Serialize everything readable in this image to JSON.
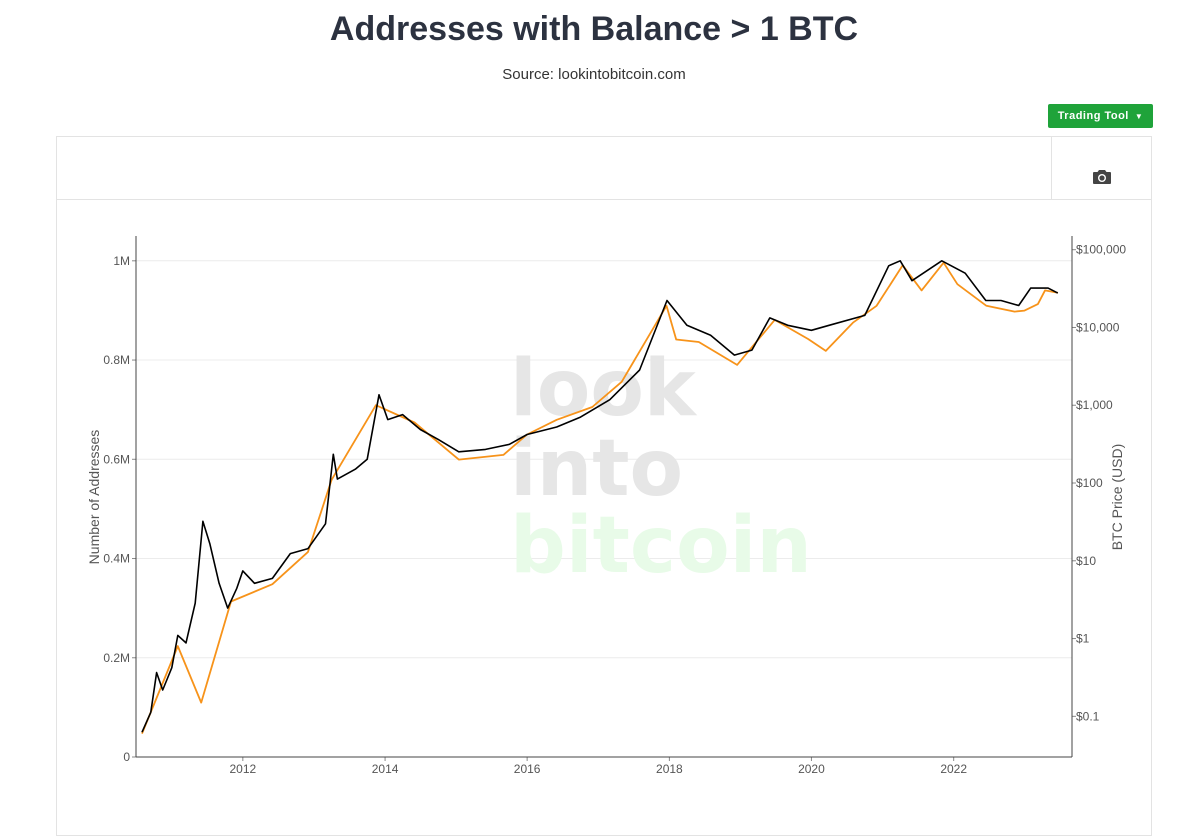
{
  "header": {
    "title": "Addresses with Balance > 1 BTC",
    "source": "Source: lookintobitcoin.com"
  },
  "toolbar": {
    "trading_tool_label": "Trading Tool",
    "camera_icon": "camera-icon"
  },
  "watermark": {
    "line1": "look",
    "line2": "into",
    "line3": "bitcoin"
  },
  "colors": {
    "addresses_line": "#000000",
    "price_line": "#f7931a",
    "trading_tool_button": "#1fa33a",
    "watermark_gray": "#e6e6e6",
    "watermark_green": "#e8fbe8"
  },
  "chart_data": {
    "type": "line",
    "title": "Addresses with Balance > 1 BTC",
    "x_ticks": [
      "2012",
      "2014",
      "2016",
      "2018",
      "2020",
      "2022"
    ],
    "y_left": {
      "label": "Number of Addresses",
      "ticks": [
        "0",
        "0.2M",
        "0.4M",
        "0.6M",
        "0.8M",
        "1M"
      ],
      "ylim": [
        0,
        1050000
      ]
    },
    "y_right": {
      "label": "BTC Price (USD)",
      "scale": "log",
      "ticks": [
        "$0.1",
        "$1",
        "$10",
        "$100",
        "$1,000",
        "$10,000",
        "$100,000"
      ],
      "ylim": [
        0.03,
        150000
      ]
    },
    "grid": true,
    "series": [
      {
        "axis": "left",
        "points": [
          [
            "2010-08-01",
            50000
          ],
          [
            "2010-09-15",
            90000
          ],
          [
            "2010-10-15",
            170000
          ],
          [
            "2010-11-15",
            135000
          ],
          [
            "2011-01-01",
            180000
          ],
          [
            "2011-02-01",
            245000
          ],
          [
            "2011-03-15",
            230000
          ],
          [
            "2011-05-01",
            310000
          ],
          [
            "2011-06-10",
            475000
          ],
          [
            "2011-07-15",
            430000
          ],
          [
            "2011-09-01",
            350000
          ],
          [
            "2011-10-15",
            300000
          ],
          [
            "2011-12-01",
            340000
          ],
          [
            "2012-01-01",
            375000
          ],
          [
            "2012-03-01",
            350000
          ],
          [
            "2012-06-01",
            360000
          ],
          [
            "2012-09-01",
            410000
          ],
          [
            "2012-12-01",
            420000
          ],
          [
            "2013-03-01",
            470000
          ],
          [
            "2013-04-10",
            610000
          ],
          [
            "2013-05-01",
            560000
          ],
          [
            "2013-08-01",
            580000
          ],
          [
            "2013-10-01",
            600000
          ],
          [
            "2013-12-01",
            730000
          ],
          [
            "2014-01-15",
            680000
          ],
          [
            "2014-04-01",
            690000
          ],
          [
            "2014-07-01",
            660000
          ],
          [
            "2014-10-01",
            640000
          ],
          [
            "2015-01-15",
            615000
          ],
          [
            "2015-06-01",
            620000
          ],
          [
            "2015-10-01",
            630000
          ],
          [
            "2016-01-01",
            650000
          ],
          [
            "2016-06-01",
            665000
          ],
          [
            "2016-10-01",
            685000
          ],
          [
            "2017-03-01",
            720000
          ],
          [
            "2017-08-01",
            780000
          ],
          [
            "2017-12-20",
            920000
          ],
          [
            "2018-04-01",
            870000
          ],
          [
            "2018-08-01",
            850000
          ],
          [
            "2018-12-01",
            810000
          ],
          [
            "2019-03-01",
            820000
          ],
          [
            "2019-06-01",
            885000
          ],
          [
            "2019-09-01",
            870000
          ],
          [
            "2020-01-01",
            860000
          ],
          [
            "2020-04-01",
            870000
          ],
          [
            "2020-10-01",
            890000
          ],
          [
            "2021-02-01",
            990000
          ],
          [
            "2021-04-01",
            1000000
          ],
          [
            "2021-06-01",
            960000
          ],
          [
            "2021-11-01",
            1000000
          ],
          [
            "2022-03-01",
            975000
          ],
          [
            "2022-06-15",
            920000
          ],
          [
            "2022-09-01",
            920000
          ],
          [
            "2022-12-01",
            910000
          ],
          [
            "2023-02-01",
            945000
          ],
          [
            "2023-05-01",
            945000
          ],
          [
            "2023-06-20",
            935000
          ]
        ]
      },
      {
        "axis": "right",
        "points": [
          [
            "2010-08-01",
            0.06
          ],
          [
            "2011-02-01",
            0.8
          ],
          [
            "2011-06-01",
            0.15
          ],
          [
            "2011-11-01",
            3
          ],
          [
            "2012-06-01",
            5
          ],
          [
            "2012-12-01",
            13
          ],
          [
            "2013-04-01",
            110
          ],
          [
            "2013-11-15",
            1000
          ],
          [
            "2014-06-01",
            600
          ],
          [
            "2015-01-15",
            200
          ],
          [
            "2015-09-01",
            230
          ],
          [
            "2016-01-01",
            420
          ],
          [
            "2016-06-01",
            650
          ],
          [
            "2016-12-01",
            950
          ],
          [
            "2017-05-01",
            2000
          ],
          [
            "2017-12-17",
            19000
          ],
          [
            "2018-02-05",
            7000
          ],
          [
            "2018-06-01",
            6500
          ],
          [
            "2018-12-15",
            3300
          ],
          [
            "2019-06-26",
            12500
          ],
          [
            "2019-12-15",
            7100
          ],
          [
            "2020-03-15",
            5000
          ],
          [
            "2020-08-01",
            11500
          ],
          [
            "2020-12-01",
            19000
          ],
          [
            "2021-04-14",
            63000
          ],
          [
            "2021-07-20",
            30000
          ],
          [
            "2021-11-10",
            68000
          ],
          [
            "2022-01-20",
            36000
          ],
          [
            "2022-06-18",
            19000
          ],
          [
            "2022-11-10",
            16000
          ],
          [
            "2022-12-31",
            16500
          ],
          [
            "2023-03-10",
            20000
          ],
          [
            "2023-04-15",
            30000
          ],
          [
            "2023-06-20",
            28000
          ]
        ]
      }
    ]
  }
}
